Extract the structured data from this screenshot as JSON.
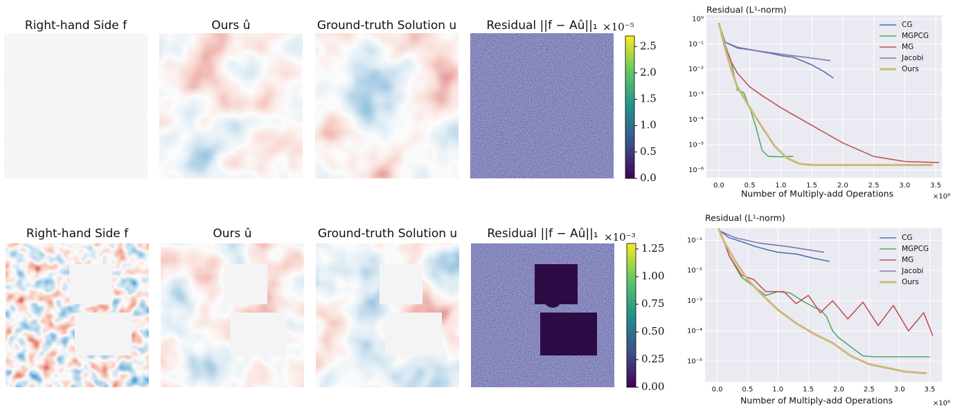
{
  "image_rows": [
    {
      "titles": [
        "Right-hand Side f",
        "Ours û",
        "Ground-truth Solution u",
        "Residual ||f − Aû||₁"
      ],
      "colorbar": {
        "exponent": "×10⁻⁵",
        "lim": [
          0,
          2.7
        ],
        "ticks": [
          {
            "value": 0,
            "label": "0.0"
          },
          {
            "value": 0.5,
            "label": "0.5"
          },
          {
            "value": 1,
            "label": "1.0"
          },
          {
            "value": 1.5,
            "label": "1.5"
          },
          {
            "value": 2,
            "label": "2.0"
          },
          {
            "value": 2.5,
            "label": "2.5"
          }
        ]
      }
    },
    {
      "titles": [
        "Right-hand Side f",
        "Ours û",
        "Ground-truth Solution u",
        "Residual ||f − Aû||₁"
      ],
      "colorbar": {
        "exponent": "×10⁻³",
        "lim": [
          0,
          1.3
        ],
        "ticks": [
          {
            "value": 0,
            "label": "0.00"
          },
          {
            "value": 0.25,
            "label": "0.25"
          },
          {
            "value": 0.5,
            "label": "0.50"
          },
          {
            "value": 0.75,
            "label": "0.75"
          },
          {
            "value": 1,
            "label": "1.00"
          },
          {
            "value": 1.25,
            "label": "1.25"
          }
        ]
      }
    }
  ],
  "chart_data": [
    {
      "type": "line",
      "title": "Residual (L¹-norm)",
      "x_label": "Number of Multiply-add Operations",
      "x_exponent": "×10⁸",
      "log_y": true,
      "grid": true,
      "legend": "upper right",
      "xlim": [
        -0.2,
        3.6
      ],
      "xticks": [
        {
          "value": 0,
          "label": "0.0"
        },
        {
          "value": 0.5,
          "label": "0.5"
        },
        {
          "value": 1,
          "label": "1.0"
        },
        {
          "value": 1.5,
          "label": "1.5"
        },
        {
          "value": 2,
          "label": "2.0"
        },
        {
          "value": 2.5,
          "label": "2.5"
        },
        {
          "value": 3,
          "label": "3.0"
        },
        {
          "value": 3.5,
          "label": "3.5"
        }
      ],
      "ylim": [
        5e-07,
        1.4
      ],
      "yticks": [
        {
          "value": 1,
          "label": "10⁰"
        },
        {
          "value": 0.1,
          "label": "10⁻¹"
        },
        {
          "value": 0.01,
          "label": "10⁻²"
        },
        {
          "value": 0.001,
          "label": "10⁻³"
        },
        {
          "value": 0.0001,
          "label": "10⁻⁴"
        },
        {
          "value": 1e-05,
          "label": "10⁻⁵"
        },
        {
          "value": 1e-06,
          "label": "10⁻⁶"
        }
      ],
      "series": [
        {
          "name": "CG",
          "color": "#4c72b0",
          "x": [
            0,
            0.1,
            0.3,
            0.5,
            0.8,
            1.0,
            1.2,
            1.5,
            1.7,
            1.85
          ],
          "values": [
            0.7,
            0.12,
            0.07,
            0.06,
            0.045,
            0.035,
            0.03,
            0.015,
            0.008,
            0.0045
          ]
        },
        {
          "name": "MGPCG",
          "color": "#55a868",
          "x": [
            0,
            0.1,
            0.2,
            0.3,
            0.4,
            0.5,
            0.6,
            0.7,
            0.8,
            1.0,
            1.2
          ],
          "values": [
            0.7,
            0.1,
            0.02,
            0.0015,
            0.0012,
            0.0003,
            5e-05,
            6e-06,
            3.5e-06,
            3.4e-06,
            3.5e-06
          ]
        },
        {
          "name": "MG",
          "color": "#c44e52",
          "x": [
            0,
            0.1,
            0.2,
            0.3,
            0.5,
            0.7,
            1.0,
            1.5,
            2.0,
            2.5,
            3.0,
            3.55
          ],
          "values": [
            0.7,
            0.08,
            0.02,
            0.007,
            0.002,
            0.0009,
            0.0003,
            6e-05,
            1.2e-05,
            3.5e-06,
            2.2e-06,
            2e-06
          ]
        },
        {
          "name": "Jacobi",
          "color": "#8172b2",
          "x": [
            0,
            0.1,
            0.3,
            0.6,
            1.0,
            1.4,
            1.8
          ],
          "values": [
            0.7,
            0.12,
            0.075,
            0.055,
            0.04,
            0.03,
            0.022
          ]
        },
        {
          "name": "Ours",
          "color": "#ccb974",
          "width": 3,
          "x": [
            0,
            0.1,
            0.2,
            0.3,
            0.5,
            0.7,
            0.9,
            1.1,
            1.3,
            1.5,
            2.0,
            2.5,
            3.0,
            3.45
          ],
          "values": [
            0.7,
            0.07,
            0.01,
            0.002,
            0.0003,
            5e-05,
            9e-06,
            3e-06,
            1.8e-06,
            1.6e-06,
            1.6e-06,
            1.6e-06,
            1.6e-06,
            1.6e-06
          ]
        }
      ]
    },
    {
      "type": "line",
      "title": "Residual (L¹-norm)",
      "x_label": "Number of Multiply-add Operations",
      "x_exponent": "×10⁸",
      "log_y": true,
      "grid": true,
      "legend": "upper right",
      "xlim": [
        -0.2,
        3.7
      ],
      "xticks": [
        {
          "value": 0,
          "label": "0.0"
        },
        {
          "value": 0.5,
          "label": "0.5"
        },
        {
          "value": 1,
          "label": "1.0"
        },
        {
          "value": 1.5,
          "label": "1.5"
        },
        {
          "value": 2,
          "label": "2.0"
        },
        {
          "value": 2.5,
          "label": "2.5"
        },
        {
          "value": 3,
          "label": "3.0"
        },
        {
          "value": 3.5,
          "label": "3.5"
        }
      ],
      "ylim": [
        2.1e-06,
        0.25
      ],
      "yticks": [
        {
          "value": 0.1,
          "label": "10⁻¹"
        },
        {
          "value": 0.01,
          "label": "10⁻²"
        },
        {
          "value": 0.001,
          "label": "10⁻³"
        },
        {
          "value": 0.0001,
          "label": "10⁻⁴"
        },
        {
          "value": 1e-05,
          "label": "10⁻⁵"
        }
      ],
      "series": [
        {
          "name": "CG",
          "color": "#4c72b0",
          "x": [
            0.05,
            0.2,
            0.4,
            0.6,
            0.8,
            1.0,
            1.3,
            1.6,
            1.85
          ],
          "values": [
            0.2,
            0.12,
            0.09,
            0.065,
            0.05,
            0.04,
            0.035,
            0.025,
            0.02
          ]
        },
        {
          "name": "MGPCG",
          "color": "#55a868",
          "x": [
            0.05,
            0.2,
            0.4,
            0.6,
            0.8,
            1.0,
            1.2,
            1.4,
            1.6,
            1.7,
            1.8,
            1.9,
            2.0,
            2.2,
            2.4,
            2.6,
            3.0,
            3.5
          ],
          "values": [
            0.2,
            0.03,
            0.006,
            0.003,
            0.0015,
            0.002,
            0.0018,
            0.001,
            0.0006,
            0.0005,
            0.0003,
            0.0001,
            6e-05,
            3e-05,
            1.5e-05,
            1.4e-05,
            1.4e-05,
            1.4e-05
          ]
        },
        {
          "name": "MG",
          "color": "#c44e52",
          "x": [
            0.05,
            0.2,
            0.4,
            0.6,
            0.8,
            1.0,
            1.1,
            1.3,
            1.5,
            1.7,
            1.9,
            2.15,
            2.4,
            2.65,
            2.9,
            3.15,
            3.4,
            3.55
          ],
          "values": [
            0.2,
            0.03,
            0.007,
            0.005,
            0.002,
            0.002,
            0.002,
            0.0008,
            0.0015,
            0.0004,
            0.001,
            0.00025,
            0.0009,
            0.00015,
            0.0007,
            0.0001,
            0.0004,
            7e-05
          ]
        },
        {
          "name": "Jacobi",
          "color": "#8172b2",
          "x": [
            0.05,
            0.3,
            0.7,
            1.2,
            1.76
          ],
          "values": [
            0.2,
            0.12,
            0.08,
            0.06,
            0.04
          ]
        },
        {
          "name": "Ours",
          "color": "#ccb974",
          "width": 3,
          "x": [
            0.02,
            0.1,
            0.3,
            0.5,
            0.75,
            1.0,
            1.3,
            1.6,
            1.9,
            2.2,
            2.5,
            2.8,
            3.1,
            3.45
          ],
          "values": [
            0.25,
            0.1,
            0.02,
            0.005,
            0.0015,
            0.0005,
            0.00018,
            8e-05,
            4e-05,
            1.5e-05,
            8e-06,
            6e-06,
            4.5e-06,
            4e-06
          ]
        }
      ]
    }
  ]
}
